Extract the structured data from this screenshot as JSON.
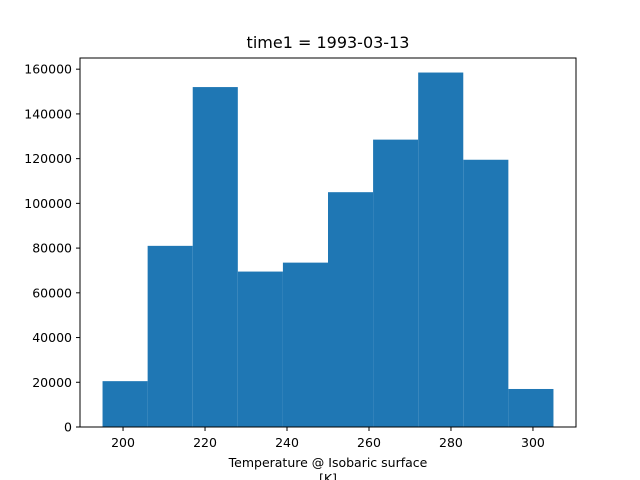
{
  "chart_data": {
    "type": "bar",
    "title": "time1 = 1993-03-13",
    "xlabel": "Temperature @ Isobaric surface",
    "xunit": "[K]",
    "ylabel": "",
    "xlim": [
      189.5,
      310.5
    ],
    "ylim": [
      0,
      165000
    ],
    "xticks": [
      200,
      220,
      240,
      260,
      280,
      300
    ],
    "yticks": [
      0,
      20000,
      40000,
      60000,
      80000,
      100000,
      120000,
      140000,
      160000
    ],
    "bin_edges": [
      195,
      206,
      217,
      228,
      239,
      250,
      261,
      272,
      283,
      294,
      305
    ],
    "values": [
      20500,
      81000,
      152000,
      69500,
      73500,
      105000,
      128500,
      158500,
      119500,
      17000
    ],
    "bar_color": "#1f77b4",
    "grid": false,
    "legend": "none"
  }
}
